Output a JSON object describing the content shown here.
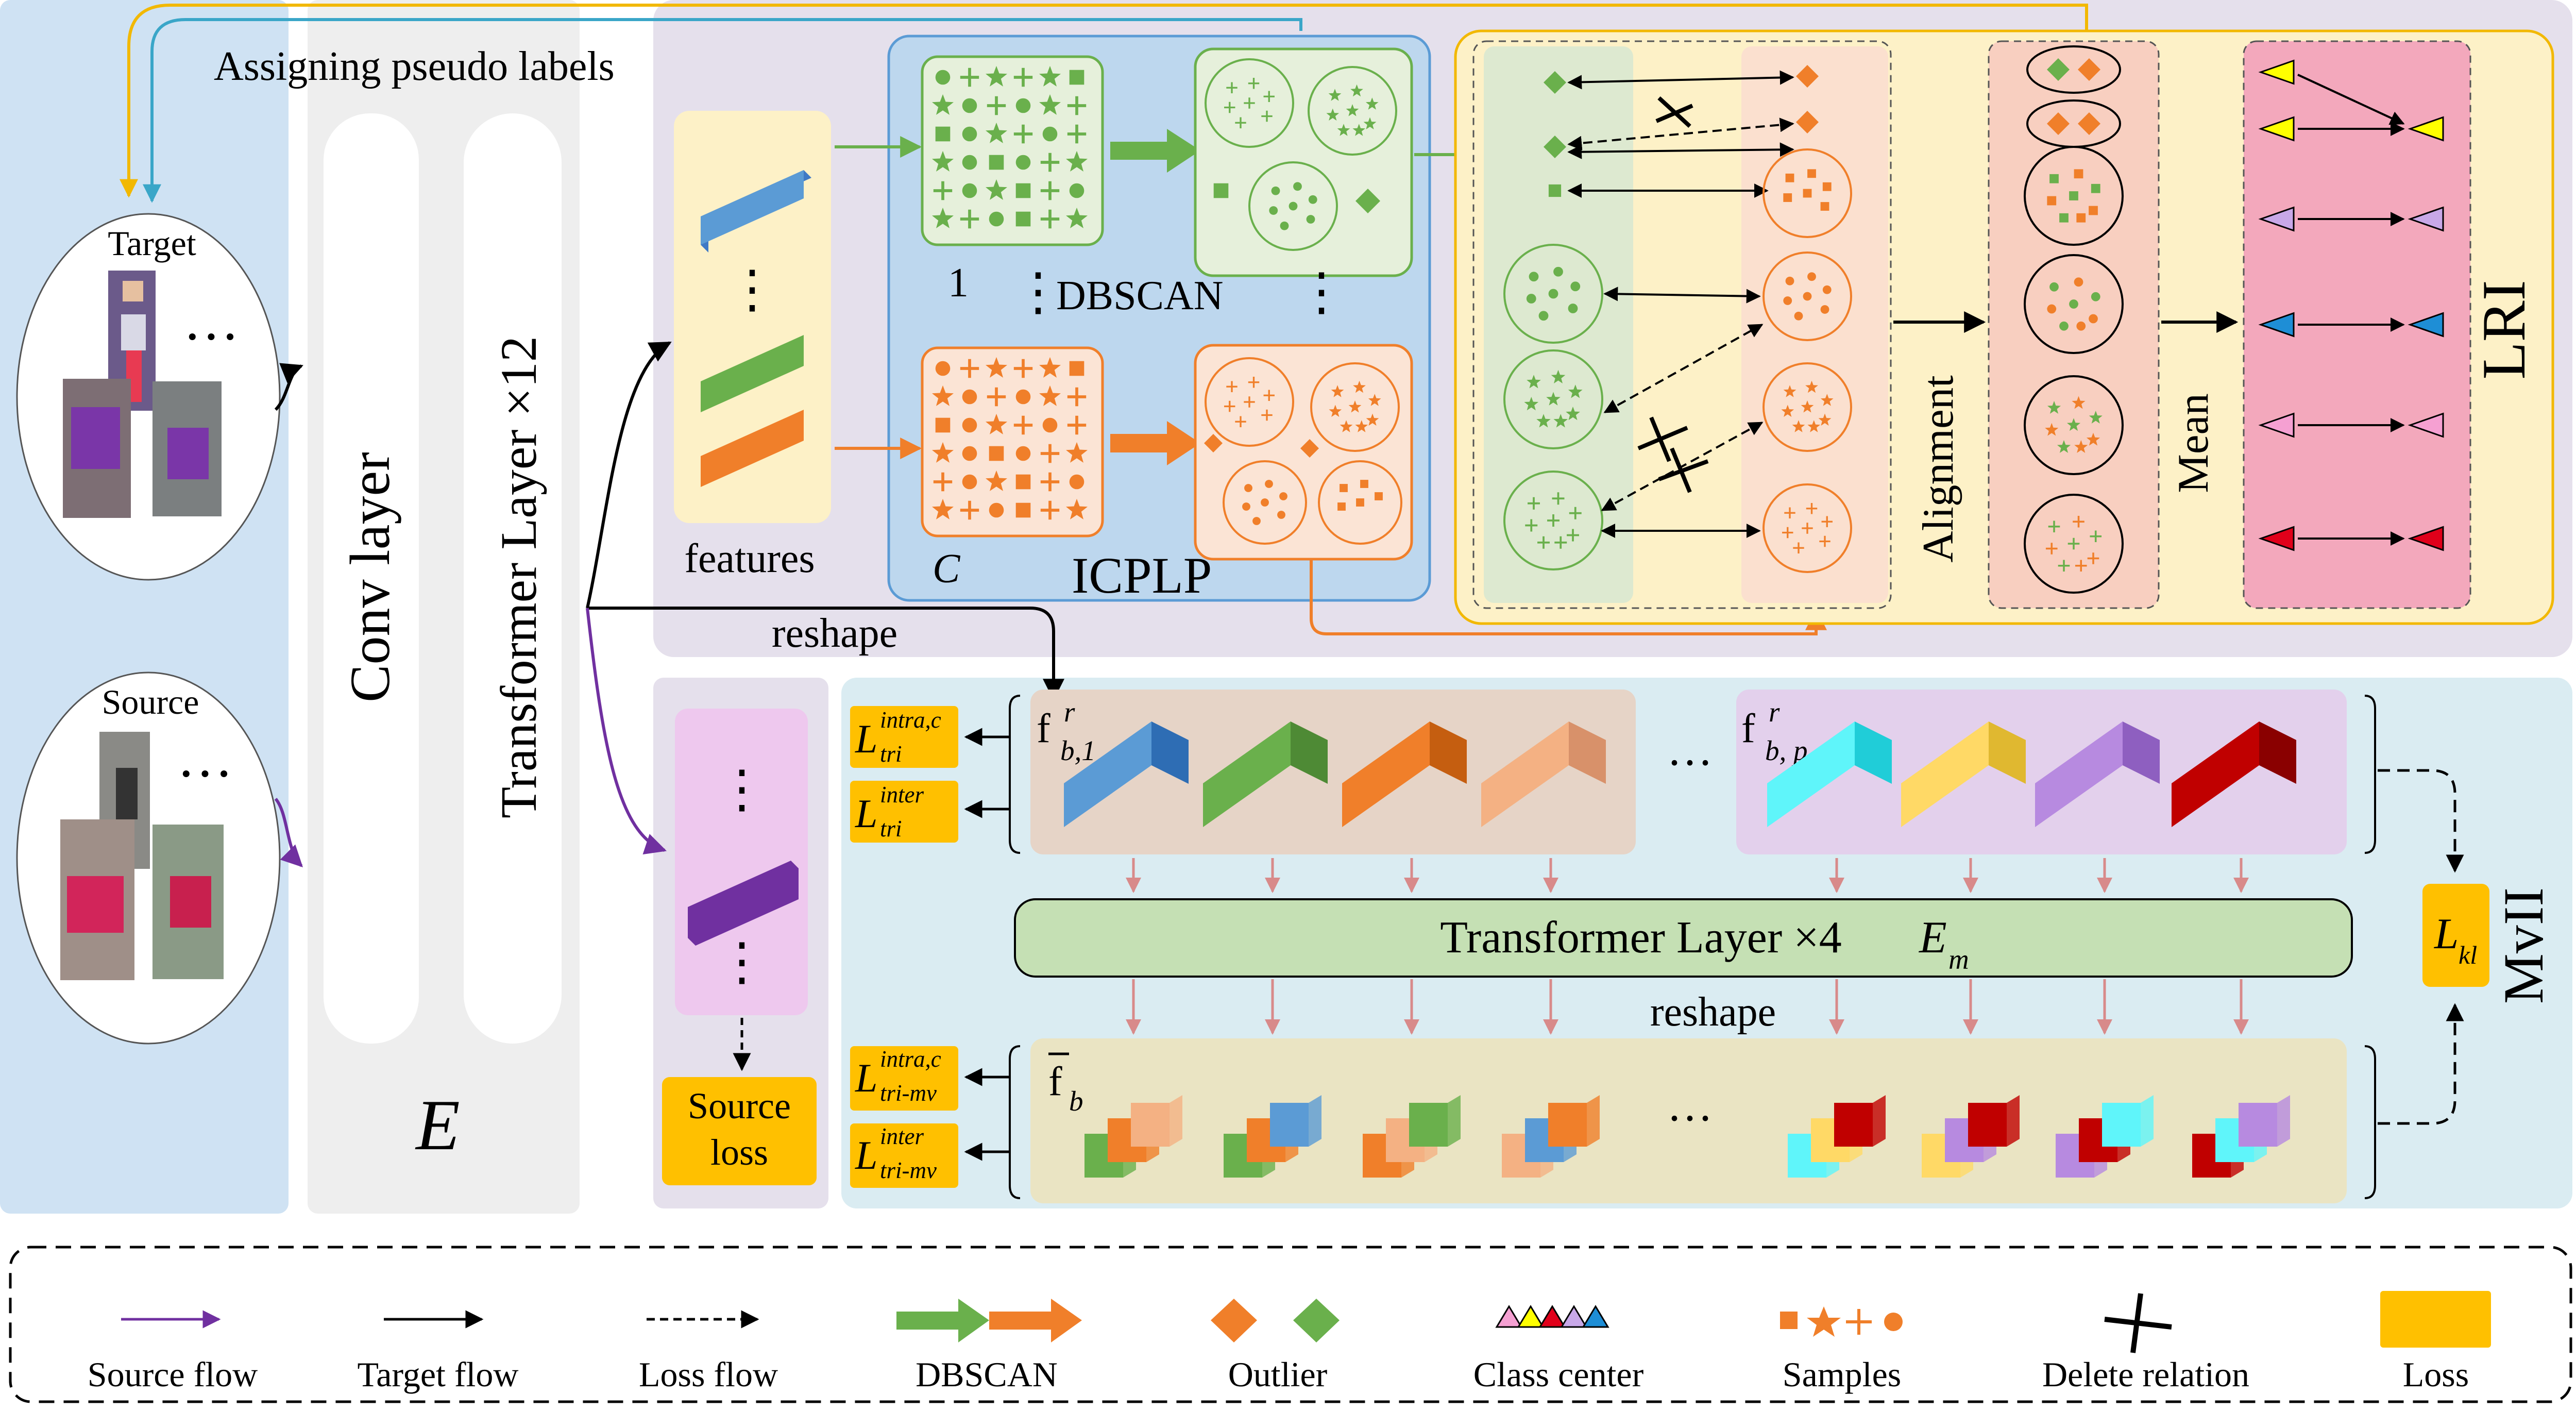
{
  "texts": {
    "assigning": "Assigning pseudo labels",
    "target": "Target",
    "source": "Source",
    "conv": "Conv layer",
    "transformer12": "Transformer Layer ×12",
    "encoder": "E",
    "features": "features",
    "one": "1",
    "dbscan": "DBSCAN",
    "c": "C",
    "icplp": "ICPLP",
    "alignment": "Alignment",
    "mean": "Mean",
    "lri": "LRI",
    "reshape1": "reshape",
    "reshape2": "reshape",
    "source_loss_1": "Source",
    "source_loss_2": "loss",
    "transformer4": "Transformer  Layer ×4",
    "em_main": "E",
    "em_sub": "m",
    "mvii": "MvII",
    "lkl_main": "L",
    "lkl_sub": "kl",
    "f_b1_main": "f",
    "f_b1_sup": "r",
    "f_b1_sub": "b,1",
    "f_bp_main": "f",
    "f_bp_sup": "r",
    "f_bp_sub": "b, p",
    "fbar_main": "f",
    "fbar_sub": "b",
    "l_intra_main": "L",
    "l_intra_sup": "intra,c",
    "l_intra_sub": "tri",
    "l_inter_main": "L",
    "l_inter_sup": "inter",
    "l_inter_sub": "tri",
    "l_intra_mv_main": "L",
    "l_intra_mv_sup": "intra,c",
    "l_intra_mv_sub": "tri-mv",
    "l_inter_mv_main": "L",
    "l_inter_mv_sup": "inter",
    "l_inter_mv_sub": "tri-mv",
    "dots": "⋮",
    "hdots": "···"
  },
  "legend": [
    {
      "key": "source_flow",
      "label": "Source flow"
    },
    {
      "key": "target_flow",
      "label": "Target flow"
    },
    {
      "key": "loss_flow",
      "label": "Loss flow"
    },
    {
      "key": "dbscan",
      "label": "DBSCAN"
    },
    {
      "key": "outlier",
      "label": "Outlier"
    },
    {
      "key": "class_center",
      "label": "Class center"
    },
    {
      "key": "samples",
      "label": "Samples"
    },
    {
      "key": "delete_relation",
      "label": "Delete relation"
    },
    {
      "key": "loss",
      "label": "Loss"
    }
  ],
  "colors": {
    "green": "#6ab04c",
    "orange": "#f07f2a",
    "blue": "#5b9bd5",
    "purple": "#7030a0",
    "gold": "#ffc000",
    "loss_yellow": "#ffc000",
    "panel_blue": "#cfe2f3",
    "panel_purple": "#e5e0ec",
    "panel_lightblue": "#daecf2"
  }
}
